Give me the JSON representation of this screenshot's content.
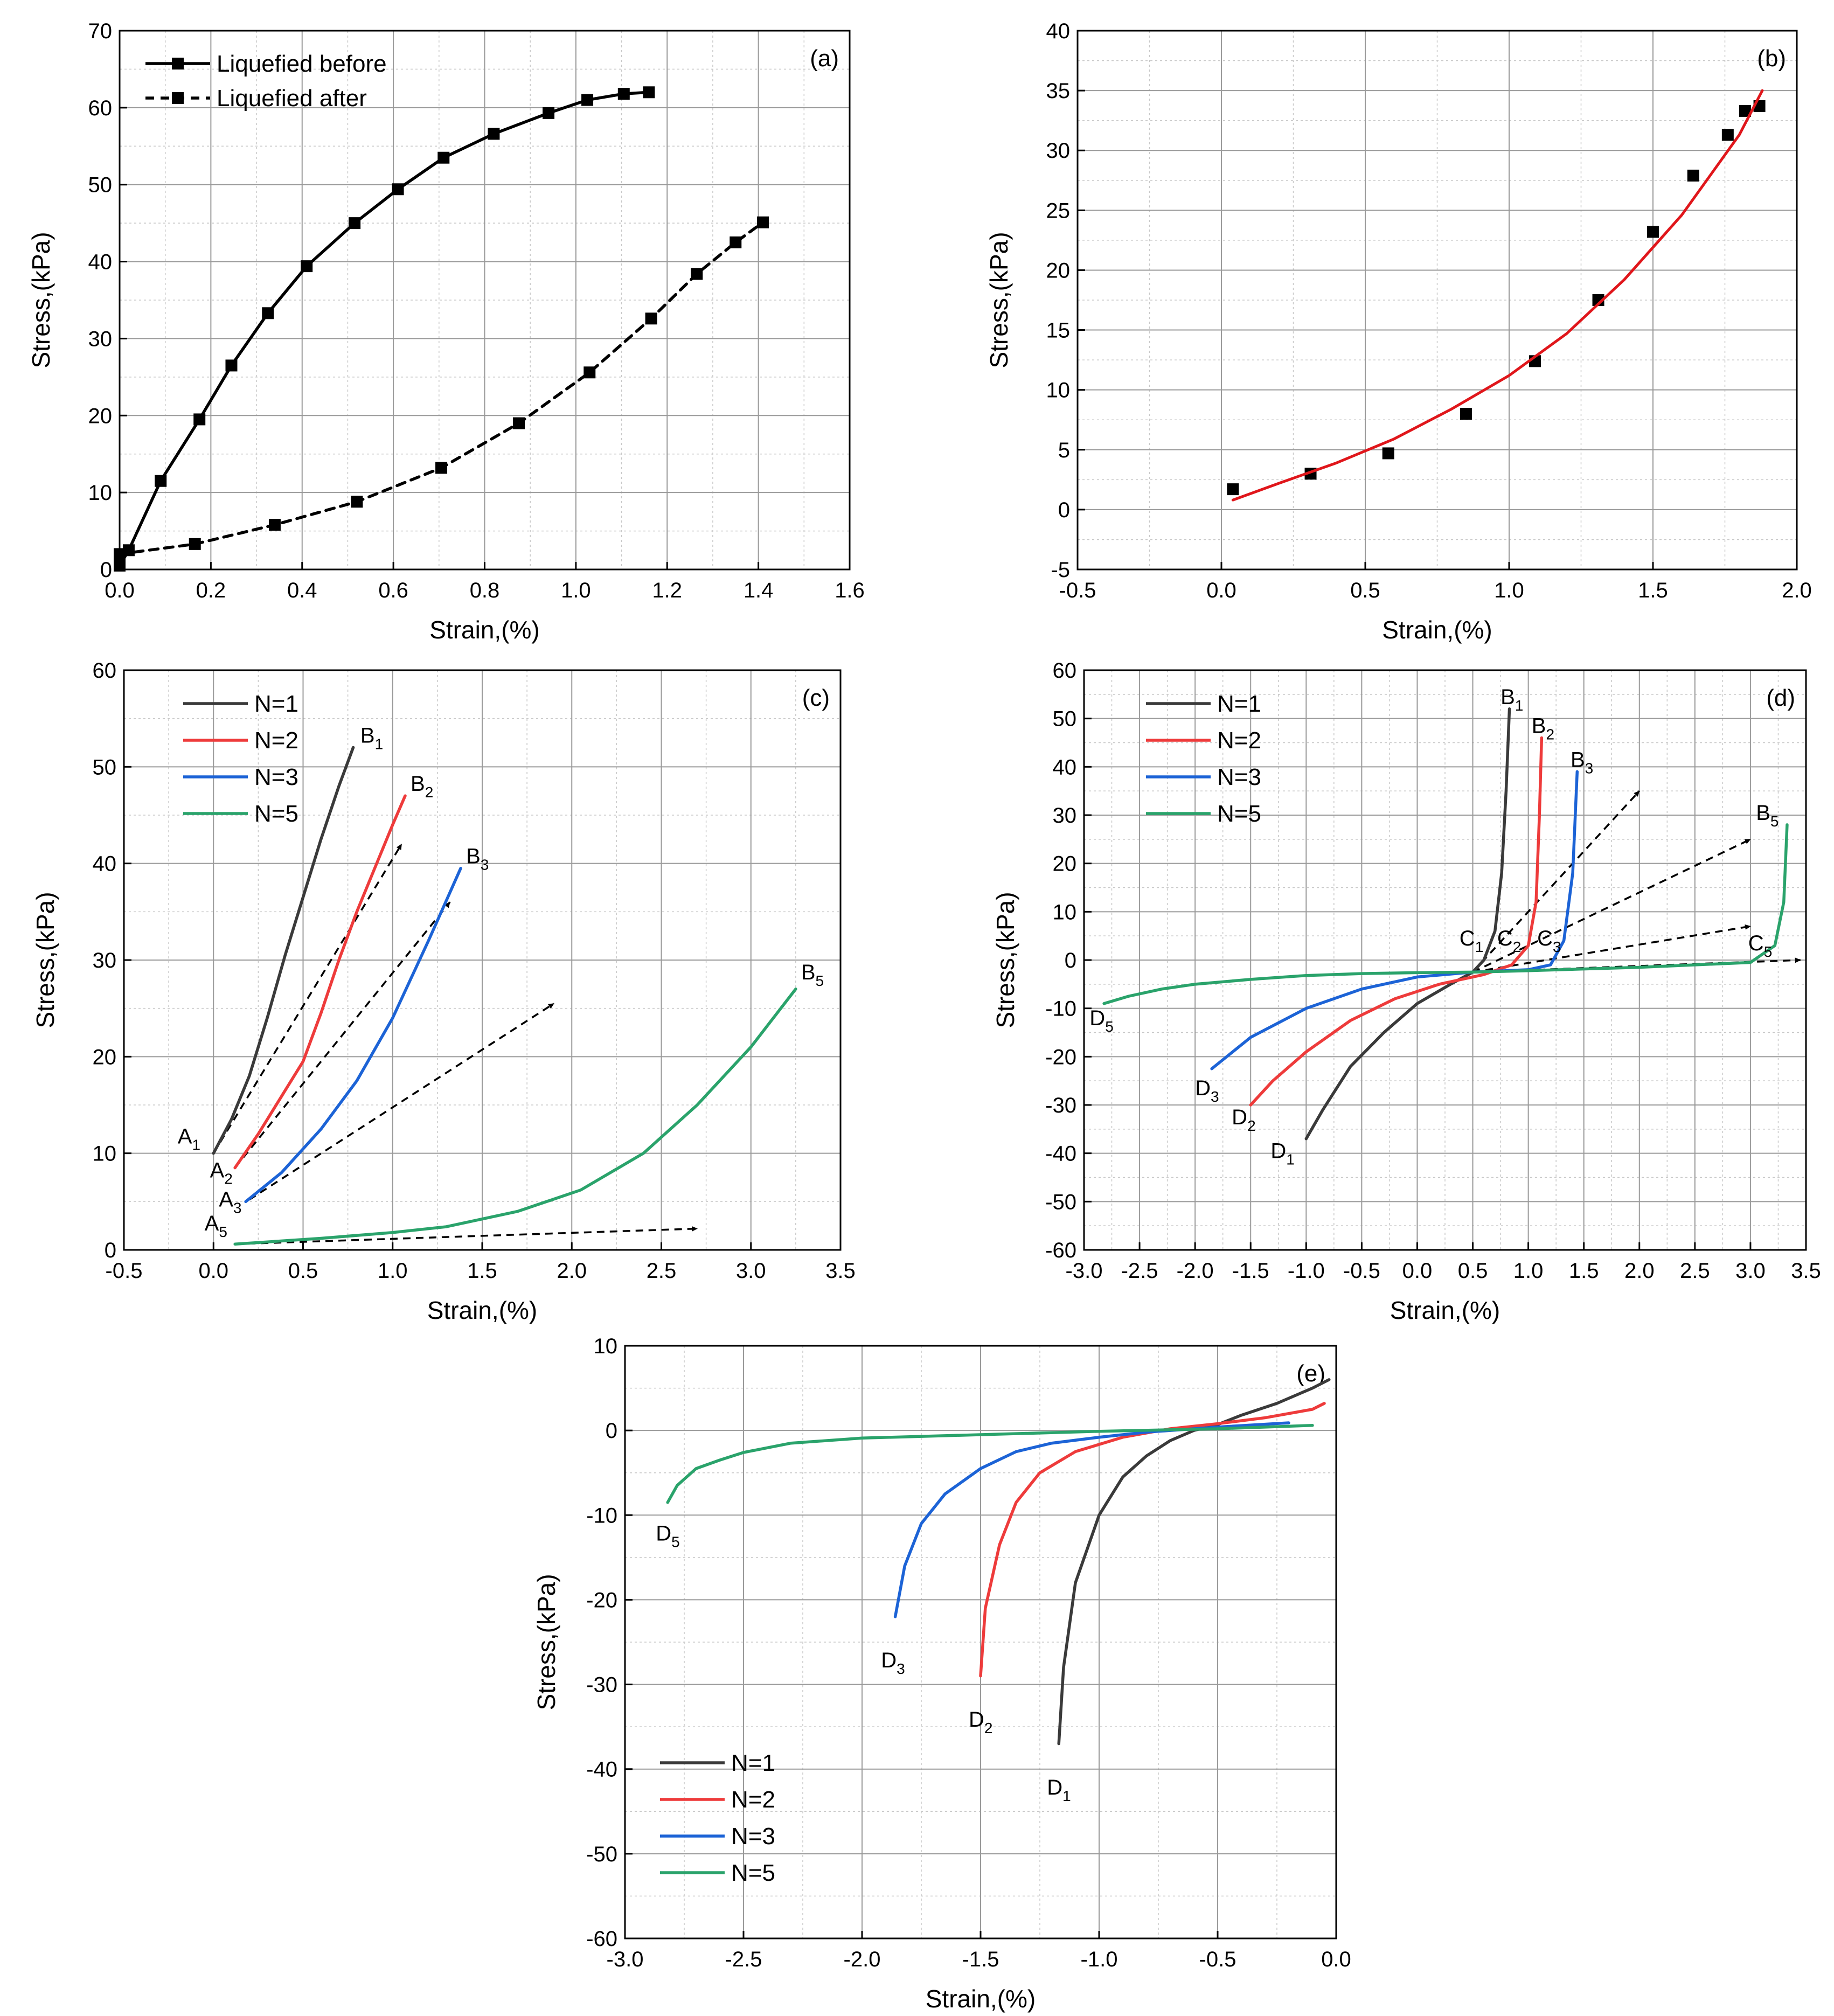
{
  "colors": {
    "n1": "#3a3a3a",
    "n2": "#ee3b3b",
    "n3": "#1c63d6",
    "n5": "#2aa36b",
    "black": "#000000",
    "grid": "#9a9a9a",
    "fit": "#e0161b"
  },
  "chart_data": [
    {
      "type": "line",
      "panel_label": "(a)",
      "xlabel": "Strain,(%)",
      "ylabel": "Stress,(kPa)",
      "xlim": [
        0.0,
        1.6
      ],
      "ylim": [
        0,
        70
      ],
      "xticks": [
        0.0,
        0.2,
        0.4,
        0.6,
        0.8,
        1.0,
        1.2,
        1.4,
        1.6
      ],
      "xtick_labels": [
        "0.0",
        "0.2",
        "0.4",
        "0.6",
        "0.8",
        "1.0",
        "1.2",
        "1.4",
        "1.6"
      ],
      "yticks": [
        0,
        10,
        20,
        30,
        40,
        50,
        60,
        70
      ],
      "ytick_labels": [
        "0",
        "10",
        "20",
        "30",
        "40",
        "50",
        "60",
        "70"
      ],
      "legend_position": "top-left",
      "series": [
        {
          "name": "Liquefied before",
          "style": "solid",
          "marker": "square",
          "color": "#000000",
          "x": [
            0.0,
            0.02,
            0.09,
            0.175,
            0.245,
            0.325,
            0.41,
            0.515,
            0.61,
            0.71,
            0.82,
            0.94,
            1.025,
            1.105,
            1.16
          ],
          "y": [
            0.5,
            2.5,
            11.5,
            19.5,
            26.5,
            33.3,
            39.4,
            45.0,
            49.4,
            53.5,
            56.6,
            59.3,
            61.0,
            61.8,
            62.0
          ]
        },
        {
          "name": "Liquefied after",
          "style": "dashed",
          "marker": "square",
          "color": "#000000",
          "x": [
            0.0,
            0.165,
            0.34,
            0.52,
            0.705,
            0.875,
            1.03,
            1.165,
            1.265,
            1.35,
            1.41
          ],
          "y": [
            2.0,
            3.3,
            5.8,
            8.8,
            13.2,
            19.0,
            25.6,
            32.6,
            38.4,
            42.5,
            45.1
          ]
        }
      ]
    },
    {
      "type": "scatter",
      "panel_label": "(b)",
      "xlabel": "Strain,(%)",
      "ylabel": "Stress,(kPa)",
      "xlim": [
        -0.5,
        2.0
      ],
      "ylim": [
        -5,
        40
      ],
      "xticks": [
        -0.5,
        0.0,
        0.5,
        1.0,
        1.5,
        2.0
      ],
      "xtick_labels": [
        "-0.5",
        "0.0",
        "0.5",
        "1.0",
        "1.5",
        "2.0"
      ],
      "yticks": [
        -5,
        0,
        5,
        10,
        15,
        20,
        25,
        30,
        35,
        40
      ],
      "ytick_labels": [
        "-5",
        "0",
        "5",
        "10",
        "15",
        "20",
        "25",
        "30",
        "35",
        "40"
      ],
      "series": [
        {
          "name": "data",
          "style": "markers",
          "marker": "square",
          "color": "#000000",
          "x": [
            0.04,
            0.31,
            0.58,
            0.85,
            1.09,
            1.31,
            1.5,
            1.64,
            1.76,
            1.82,
            1.87
          ],
          "y": [
            1.7,
            3.0,
            4.7,
            8.0,
            12.4,
            17.5,
            23.2,
            27.9,
            31.3,
            33.3,
            33.7
          ]
        },
        {
          "name": "fit",
          "style": "solid",
          "marker": "none",
          "color": "#e0161b",
          "x": [
            0.04,
            0.2,
            0.4,
            0.6,
            0.8,
            1.0,
            1.2,
            1.4,
            1.6,
            1.8,
            1.88
          ],
          "y": [
            0.8,
            2.2,
            3.9,
            5.9,
            8.4,
            11.2,
            14.7,
            19.2,
            24.6,
            31.3,
            35.0
          ]
        }
      ]
    },
    {
      "type": "line",
      "panel_label": "(c)",
      "xlabel": "Strain,(%)",
      "ylabel": "Stress,(kPa)",
      "xlim": [
        -0.5,
        3.5
      ],
      "ylim": [
        0,
        60
      ],
      "xticks": [
        -0.5,
        0.0,
        0.5,
        1.0,
        1.5,
        2.0,
        2.5,
        3.0,
        3.5
      ],
      "xtick_labels": [
        "-0.5",
        "0.0",
        "0.5",
        "1.0",
        "1.5",
        "2.0",
        "2.5",
        "3.0",
        "3.5"
      ],
      "yticks": [
        0,
        10,
        20,
        30,
        40,
        50,
        60
      ],
      "ytick_labels": [
        "0",
        "10",
        "20",
        "30",
        "40",
        "50",
        "60"
      ],
      "legend_position": "top-left",
      "series": [
        {
          "name": "N=1",
          "color": "#3a3a3a",
          "x": [
            0.0,
            0.1,
            0.2,
            0.3,
            0.4,
            0.5,
            0.6,
            0.7,
            0.78
          ],
          "y": [
            10.0,
            13.5,
            18.0,
            24.0,
            30.5,
            36.5,
            42.5,
            48.0,
            52.0
          ]
        },
        {
          "name": "N=2",
          "color": "#ee3b3b",
          "x": [
            0.12,
            0.25,
            0.4,
            0.5,
            0.6,
            0.7,
            0.8,
            0.9,
            1.0,
            1.07
          ],
          "y": [
            8.5,
            12.0,
            16.5,
            19.5,
            24.5,
            30.0,
            35.0,
            39.5,
            44.0,
            47.0
          ]
        },
        {
          "name": "N=3",
          "color": "#1c63d6",
          "x": [
            0.18,
            0.38,
            0.6,
            0.8,
            1.0,
            1.2,
            1.38
          ],
          "y": [
            5.0,
            8.0,
            12.5,
            17.5,
            24.0,
            32.0,
            39.5
          ]
        },
        {
          "name": "N=5",
          "color": "#2aa36b",
          "x": [
            0.12,
            0.6,
            1.0,
            1.3,
            1.7,
            2.05,
            2.4,
            2.7,
            3.0,
            3.25
          ],
          "y": [
            0.6,
            1.2,
            1.8,
            2.4,
            4.0,
            6.2,
            10.0,
            15.0,
            21.0,
            27.0
          ]
        }
      ],
      "arrows": [
        {
          "from": [
            0.0,
            10.0
          ],
          "to": [
            1.05,
            42.0
          ]
        },
        {
          "from": [
            0.12,
            8.5
          ],
          "to": [
            1.32,
            36.0
          ]
        },
        {
          "from": [
            0.2,
            5.2
          ],
          "to": [
            1.9,
            25.5
          ]
        },
        {
          "from": [
            0.12,
            0.6
          ],
          "to": [
            2.7,
            2.2
          ]
        }
      ],
      "annotations": [
        {
          "text": "A",
          "sub": "1",
          "x": -0.2,
          "y": 11.0
        },
        {
          "text": "A",
          "sub": "2",
          "x": -0.02,
          "y": 7.5
        },
        {
          "text": "A",
          "sub": "3",
          "x": 0.03,
          "y": 4.5
        },
        {
          "text": "A",
          "sub": "5",
          "x": -0.05,
          "y": 2.0
        },
        {
          "text": "B",
          "sub": "1",
          "x": 0.82,
          "y": 52.5
        },
        {
          "text": "B",
          "sub": "2",
          "x": 1.1,
          "y": 47.5
        },
        {
          "text": "B",
          "sub": "3",
          "x": 1.41,
          "y": 40.0
        },
        {
          "text": "B",
          "sub": "5",
          "x": 3.28,
          "y": 28.0
        }
      ]
    },
    {
      "type": "line",
      "panel_label": "(d)",
      "xlabel": "Strain,(%)",
      "ylabel": "Stress,(kPa)",
      "xlim": [
        -3.0,
        3.5
      ],
      "ylim": [
        -60,
        60
      ],
      "xticks": [
        -3.0,
        -2.5,
        -2.0,
        -1.5,
        -1.0,
        -0.5,
        0.0,
        0.5,
        1.0,
        1.5,
        2.0,
        2.5,
        3.0,
        3.5
      ],
      "xtick_labels": [
        "-3.0",
        "-2.5",
        "-2.0",
        "-1.5",
        "-1.0",
        "-0.5",
        "0.0",
        "0.5",
        "1.0",
        "1.5",
        "2.0",
        "2.5",
        "3.0",
        "3.5"
      ],
      "yticks": [
        -60,
        -50,
        -40,
        -30,
        -20,
        -10,
        0,
        10,
        20,
        30,
        40,
        50,
        60
      ],
      "ytick_labels": [
        "-60",
        "-50",
        "-40",
        "-30",
        "-20",
        "-10",
        "0",
        "10",
        "20",
        "30",
        "40",
        "50",
        "60"
      ],
      "legend_position": "top-left",
      "series": [
        {
          "name": "N=1",
          "color": "#3a3a3a",
          "x": [
            -1.0,
            -0.85,
            -0.6,
            -0.3,
            0.0,
            0.3,
            0.5,
            0.6,
            0.7,
            0.76,
            0.8,
            0.83
          ],
          "y": [
            -37.0,
            -31.0,
            -22.0,
            -15.0,
            -9.0,
            -5.0,
            -2.5,
            0.0,
            6.0,
            18.0,
            35.0,
            52.0
          ]
        },
        {
          "name": "N=2",
          "color": "#ee3b3b",
          "x": [
            -1.5,
            -1.3,
            -1.0,
            -0.6,
            -0.2,
            0.2,
            0.6,
            0.85,
            1.0,
            1.07,
            1.1,
            1.12
          ],
          "y": [
            -30.0,
            -25.0,
            -19.0,
            -12.5,
            -8.0,
            -5.0,
            -3.0,
            -1.0,
            3.0,
            12.0,
            30.0,
            46.0
          ]
        },
        {
          "name": "N=3",
          "color": "#1c63d6",
          "x": [
            -1.85,
            -1.5,
            -1.0,
            -0.5,
            0.0,
            0.5,
            1.0,
            1.2,
            1.32,
            1.4,
            1.44
          ],
          "y": [
            -22.5,
            -16.0,
            -10.0,
            -6.0,
            -3.5,
            -2.5,
            -2.0,
            -1.0,
            4.0,
            18.0,
            39.0
          ]
        },
        {
          "name": "N=5",
          "color": "#2aa36b",
          "x": [
            -2.82,
            -2.6,
            -2.3,
            -2.0,
            -1.5,
            -1.0,
            -0.5,
            0.0,
            0.5,
            1.0,
            2.0,
            3.0,
            3.22,
            3.3,
            3.33
          ],
          "y": [
            -9.0,
            -7.5,
            -6.0,
            -5.0,
            -4.0,
            -3.2,
            -2.8,
            -2.6,
            -2.5,
            -2.2,
            -1.5,
            -0.5,
            3.0,
            12.0,
            28.0
          ]
        }
      ],
      "arrows": [
        {
          "from": [
            0.5,
            -2.5
          ],
          "to": [
            2.0,
            35.0
          ]
        },
        {
          "from": [
            0.5,
            -2.5
          ],
          "to": [
            3.0,
            25.0
          ]
        },
        {
          "from": [
            0.5,
            -2.5
          ],
          "to": [
            3.0,
            7.0
          ]
        },
        {
          "from": [
            0.5,
            -2.5
          ],
          "to": [
            3.45,
            0.0
          ]
        }
      ],
      "annotations": [
        {
          "text": "B",
          "sub": "1",
          "x": 0.75,
          "y": 53.0
        },
        {
          "text": "B",
          "sub": "2",
          "x": 1.03,
          "y": 47.0
        },
        {
          "text": "B",
          "sub": "3",
          "x": 1.38,
          "y": 40.0
        },
        {
          "text": "B",
          "sub": "5",
          "x": 3.05,
          "y": 29.0
        },
        {
          "text": "C",
          "sub": "1",
          "x": 0.38,
          "y": 3.0
        },
        {
          "text": "C",
          "sub": "2",
          "x": 0.72,
          "y": 3.0
        },
        {
          "text": "C",
          "sub": "3",
          "x": 1.08,
          "y": 3.0
        },
        {
          "text": "C",
          "sub": "5",
          "x": 2.98,
          "y": 2.0
        },
        {
          "text": "D",
          "sub": "1",
          "x": -1.32,
          "y": -41.0
        },
        {
          "text": "D",
          "sub": "2",
          "x": -1.67,
          "y": -34.0
        },
        {
          "text": "D",
          "sub": "3",
          "x": -2.0,
          "y": -28.0
        },
        {
          "text": "D",
          "sub": "5",
          "x": -2.95,
          "y": -13.5
        }
      ]
    },
    {
      "type": "line",
      "panel_label": "(e)",
      "xlabel": "Strain,(%)",
      "ylabel": "Stress,(kPa)",
      "xlim": [
        -3.0,
        0.0
      ],
      "ylim": [
        -60,
        10
      ],
      "xticks": [
        -3.0,
        -2.5,
        -2.0,
        -1.5,
        -1.0,
        -0.5,
        0.0
      ],
      "xtick_labels": [
        "-3.0",
        "-2.5",
        "-2.0",
        "-1.5",
        "-1.0",
        "-0.5",
        "0.0"
      ],
      "yticks": [
        -60,
        -50,
        -40,
        -30,
        -20,
        -10,
        0,
        10
      ],
      "ytick_labels": [
        "-60",
        "-50",
        "-40",
        "-30",
        "-20",
        "-10",
        "0",
        "10"
      ],
      "legend_position": "bottom-left",
      "series": [
        {
          "name": "N=1",
          "color": "#3a3a3a",
          "x": [
            -1.17,
            -1.15,
            -1.1,
            -1.0,
            -0.9,
            -0.8,
            -0.7,
            -0.6,
            -0.5,
            -0.4,
            -0.25,
            -0.1,
            -0.03
          ],
          "y": [
            -37.0,
            -28.0,
            -18.0,
            -10.0,
            -5.5,
            -3.0,
            -1.2,
            0.0,
            0.7,
            1.8,
            3.2,
            5.0,
            6.0
          ]
        },
        {
          "name": "N=2",
          "color": "#ee3b3b",
          "x": [
            -1.5,
            -1.48,
            -1.42,
            -1.35,
            -1.25,
            -1.1,
            -0.9,
            -0.7,
            -0.5,
            -0.3,
            -0.1,
            -0.05
          ],
          "y": [
            -29.0,
            -21.0,
            -13.5,
            -8.5,
            -5.0,
            -2.5,
            -0.8,
            0.2,
            0.8,
            1.5,
            2.5,
            3.2
          ]
        },
        {
          "name": "N=3",
          "color": "#1c63d6",
          "x": [
            -1.86,
            -1.82,
            -1.75,
            -1.65,
            -1.5,
            -1.35,
            -1.2,
            -1.0,
            -0.8,
            -0.5,
            -0.2
          ],
          "y": [
            -22.0,
            -16.0,
            -11.0,
            -7.5,
            -4.5,
            -2.5,
            -1.5,
            -0.8,
            -0.2,
            0.4,
            0.9
          ]
        },
        {
          "name": "N=5",
          "color": "#2aa36b",
          "x": [
            -2.82,
            -2.78,
            -2.7,
            -2.6,
            -2.5,
            -2.3,
            -2.0,
            -1.5,
            -1.0,
            -0.5,
            -0.1
          ],
          "y": [
            -8.5,
            -6.5,
            -4.5,
            -3.5,
            -2.6,
            -1.5,
            -0.9,
            -0.5,
            -0.1,
            0.2,
            0.6
          ]
        }
      ],
      "annotations": [
        {
          "text": "D",
          "sub": "1",
          "x": -1.22,
          "y": -43.0
        },
        {
          "text": "D",
          "sub": "2",
          "x": -1.55,
          "y": -35.0
        },
        {
          "text": "D",
          "sub": "3",
          "x": -1.92,
          "y": -28.0
        },
        {
          "text": "D",
          "sub": "5",
          "x": -2.87,
          "y": -13.0
        }
      ]
    }
  ]
}
